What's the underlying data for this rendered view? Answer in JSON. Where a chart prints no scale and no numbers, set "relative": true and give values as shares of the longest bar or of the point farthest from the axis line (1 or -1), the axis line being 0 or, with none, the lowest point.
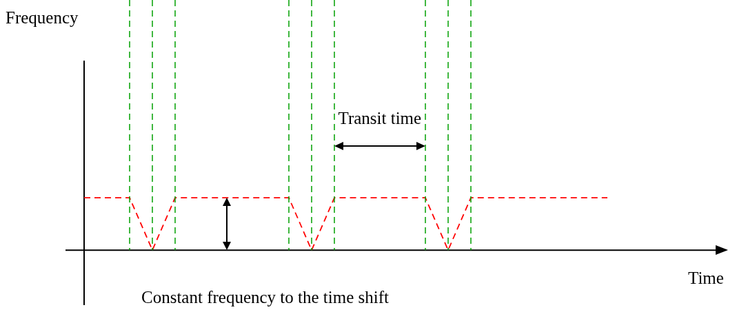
{
  "chart_data": {
    "type": "line",
    "relative": true,
    "xlabel": "Time",
    "annotations": [
      "Frequency",
      "Transit time",
      "Constant frequency to the time shift"
    ],
    "categories": [
      null,
      null,
      null,
      null,
      null,
      null,
      null,
      null,
      null,
      null,
      null,
      null,
      null,
      null,
      null,
      null,
      null,
      null,
      null,
      null,
      null,
      null,
      null,
      null,
      null,
      null,
      null,
      null,
      null
    ],
    "series": [
      {
        "color": "#ff0000",
        "values": [
          1,
          null,
          1,
          0,
          1,
          null,
          null,
          null,
          null,
          1,
          0,
          1,
          null,
          null,
          null,
          1,
          0,
          1,
          null,
          null,
          null,
          null,
          null,
          1,
          null,
          null,
          null,
          null,
          null
        ]
      }
    ],
    "line_style": "dashed",
    "marker": "none",
    "grid": "x"
  }
}
